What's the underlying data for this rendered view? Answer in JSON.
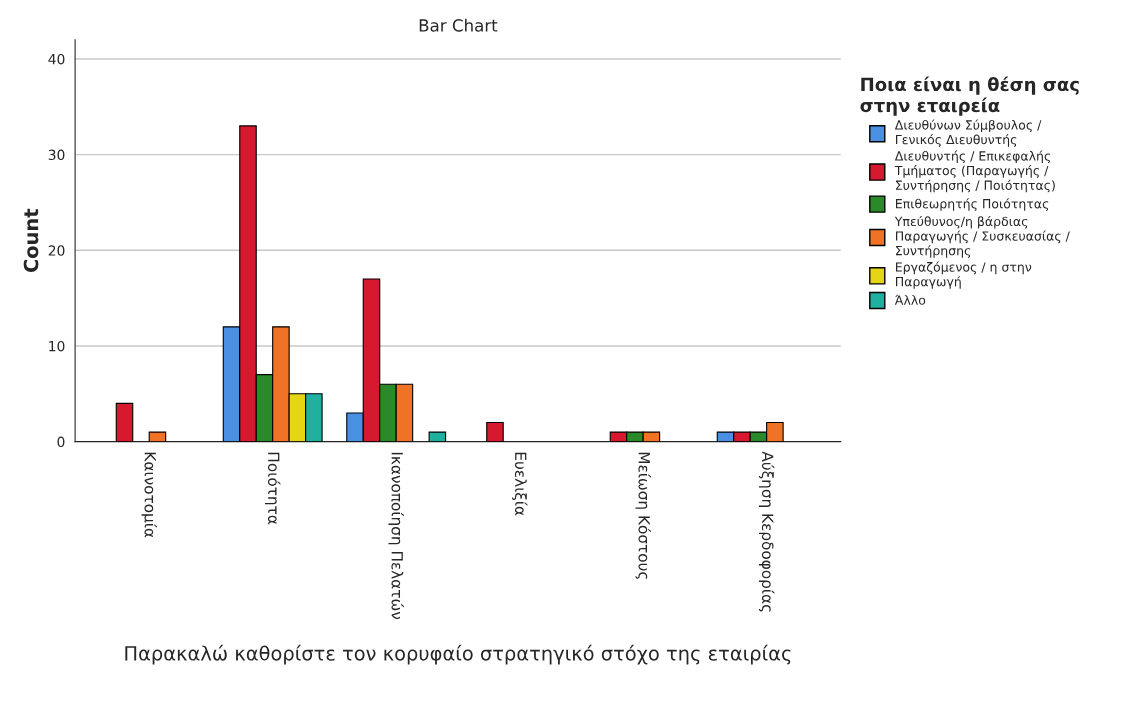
{
  "chart_data": {
    "type": "bar",
    "title": "Bar Chart",
    "xlabel": "Παρακαλώ καθορίστε τον κορυφαίο στρατηγικό στόχο της εταιρίας",
    "ylabel": "Count",
    "legend_title": "Ποια είναι η θέση σας στην εταιρεία",
    "categories": [
      "Καινοτομία",
      "Ποιότητα",
      "Ικανοποίηση Πελατών",
      "Ευελιξία",
      "Μείωση Κόστους",
      "Αύξηση Κερδοφορίας"
    ],
    "series": [
      {
        "name": "Διευθύνων Σύμβουλος / Γενικός Διευθυντής",
        "color": "#4a90e2",
        "values": [
          null,
          12,
          3,
          null,
          null,
          1
        ]
      },
      {
        "name": "Διευθυντής / Επικεφαλής Τμήματος (Παραγωγής / Συντήρησης / Ποιότητας)",
        "color": "#d7192f",
        "values": [
          4,
          33,
          17,
          2,
          1,
          1
        ]
      },
      {
        "name": "Επιθεωρητής Ποιότητας",
        "color": "#2a8a2a",
        "values": [
          null,
          7,
          6,
          null,
          1,
          1
        ]
      },
      {
        "name": "Υπεύθυνος/η βάρδιας Παραγωγής / Συσκευασίας / Συντήρησης",
        "color": "#f07225",
        "values": [
          1,
          12,
          6,
          null,
          1,
          2
        ]
      },
      {
        "name": "Εργαζόμενος / η στην Παραγωγή",
        "color": "#e6d515",
        "values": [
          null,
          5,
          null,
          null,
          null,
          null
        ]
      },
      {
        "name": "Άλλο",
        "color": "#1fb0a0",
        "values": [
          null,
          5,
          1,
          null,
          null,
          null
        ]
      }
    ],
    "ylim": [
      0,
      42
    ],
    "yticks": [
      0,
      10,
      20,
      30,
      40
    ],
    "grid": "y",
    "legend": "right"
  }
}
